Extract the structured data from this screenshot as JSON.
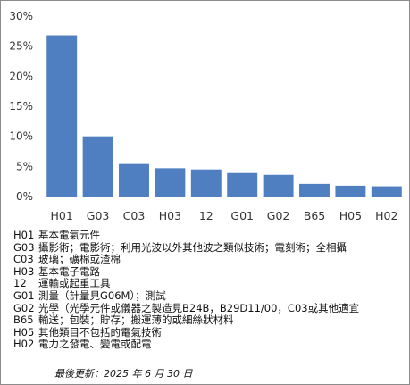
{
  "chart_data": {
    "type": "bar",
    "categories": [
      "H01",
      "G03",
      "C03",
      "H03",
      "12",
      "G01",
      "G02",
      "B65",
      "H05",
      "H02"
    ],
    "values": [
      26.8,
      10.0,
      5.4,
      4.7,
      4.5,
      3.9,
      3.6,
      2.1,
      1.8,
      1.7
    ],
    "ylim": [
      0,
      30
    ],
    "yticks": [
      0,
      5,
      10,
      15,
      20,
      25,
      30
    ],
    "ytick_labels": [
      "0%",
      "5%",
      "10%",
      "15%",
      "20%",
      "25%",
      "30%"
    ],
    "grid": false,
    "colors": {
      "bar": "#4f7fc0",
      "axis": "#bfbfbf",
      "text": "#333333"
    }
  },
  "legend": [
    {
      "code": "H01",
      "desc": "基本電氣元件"
    },
    {
      "code": "G03",
      "desc": "攝影術；電影術；利用光波以外其他波之類似技術；電刻術；全相攝"
    },
    {
      "code": "C03",
      "desc": "玻璃；礦棉或渣棉"
    },
    {
      "code": "H03",
      "desc": "基本電子電路"
    },
    {
      "code": "12",
      "desc": "運輸或起重工具"
    },
    {
      "code": "G01",
      "desc": "測量（計量見G06M）；測試"
    },
    {
      "code": "G02",
      "desc": "光學（光學元件或儀器之製造見B24B，B29D11/00，C03或其他適宜"
    },
    {
      "code": "B65",
      "desc": "輸送；包裝；貯存；搬運薄的或細絲狀材料"
    },
    {
      "code": "H05",
      "desc": "其他類目不包括的電氣技術"
    },
    {
      "code": "H02",
      "desc": "電力之發電、變電或配電"
    }
  ],
  "footer": "最後更新：2025 年 6 月 30 日"
}
